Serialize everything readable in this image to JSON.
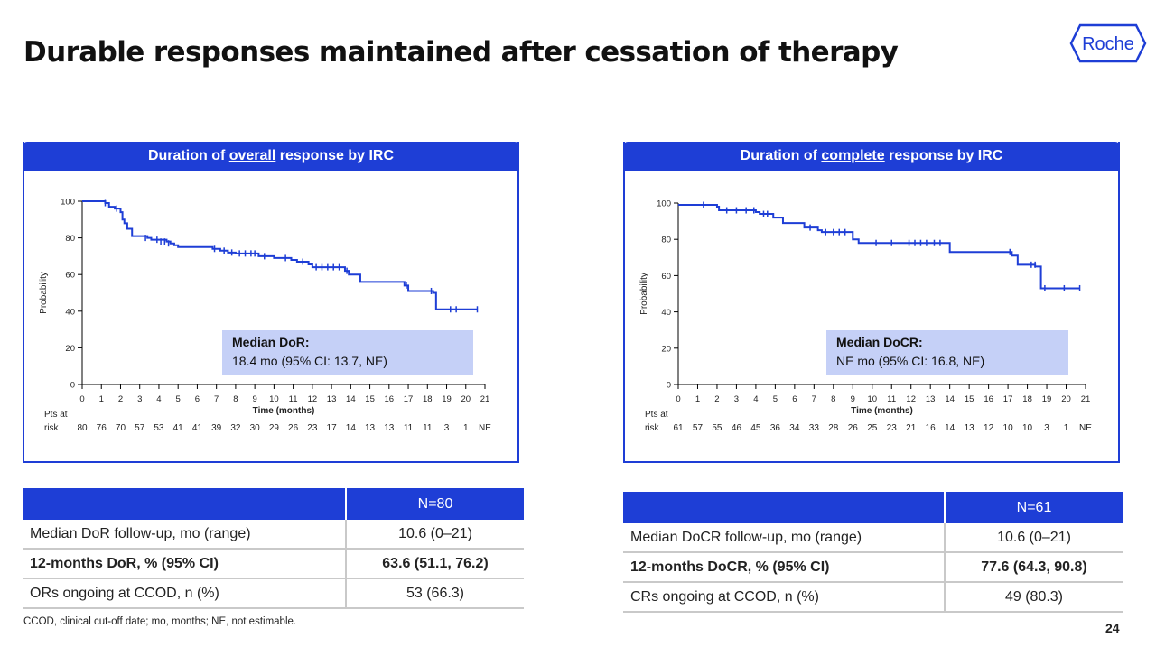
{
  "title": "Durable responses maintained after cessation of therapy",
  "logo_text": "Roche",
  "page_number": "24",
  "footnote": "CCOD, clinical cut-off date; mo, months; NE, not estimable.",
  "colors": {
    "accent": "#1e3ed6",
    "median_box": "#c5d0f7",
    "curve": "#1e3ed6"
  },
  "chart_data": [
    {
      "type": "line",
      "title_parts": [
        "Duration of ",
        "overall",
        " response by IRC"
      ],
      "xlabel": "Time (months)",
      "ylabel": "Probability",
      "xlim": [
        0,
        21
      ],
      "ylim": [
        0,
        100
      ],
      "x_ticks": [
        "0",
        "1",
        "2",
        "3",
        "4",
        "5",
        "6",
        "7",
        "8",
        "9",
        "10",
        "11",
        "12",
        "13",
        "14",
        "15",
        "16",
        "17",
        "18",
        "19",
        "20",
        "21"
      ],
      "y_ticks": [
        "0",
        "20",
        "40",
        "60",
        "80",
        "100"
      ],
      "risk_label_1": "Pts at",
      "risk_label_2": "risk",
      "at_risk": [
        "80",
        "76",
        "70",
        "57",
        "53",
        "41",
        "41",
        "39",
        "32",
        "30",
        "29",
        "26",
        "23",
        "17",
        "14",
        "13",
        "13",
        "11",
        "11",
        "3",
        "1",
        "NE"
      ],
      "median_title": "Median DoR:",
      "median_value": "18.4 mo (95% CI: 13.7, NE)",
      "series": [
        {
          "steps": [
            [
              0,
              100
            ],
            [
              1.2,
              99
            ],
            [
              1.4,
              97
            ],
            [
              1.7,
              96
            ],
            [
              2.0,
              94
            ],
            [
              2.1,
              90
            ],
            [
              2.2,
              88
            ],
            [
              2.35,
              85
            ],
            [
              2.6,
              81
            ],
            [
              3.4,
              80
            ],
            [
              3.6,
              79
            ],
            [
              4.4,
              78
            ],
            [
              4.6,
              77
            ],
            [
              4.8,
              76
            ],
            [
              5.0,
              75
            ],
            [
              6.8,
              74
            ],
            [
              7.2,
              73
            ],
            [
              7.6,
              72
            ],
            [
              8.0,
              71.5
            ],
            [
              9.2,
              70
            ],
            [
              10.0,
              69
            ],
            [
              10.9,
              68
            ],
            [
              11.2,
              67
            ],
            [
              11.8,
              65.5
            ],
            [
              12.0,
              64
            ],
            [
              13.7,
              62
            ],
            [
              13.9,
              60
            ],
            [
              14.5,
              56
            ],
            [
              16.8,
              54
            ],
            [
              17.0,
              51
            ],
            [
              18.3,
              50
            ],
            [
              18.45,
              41
            ],
            [
              20.6,
              41
            ]
          ],
          "censors": [
            [
              1.2,
              99
            ],
            [
              1.8,
              96
            ],
            [
              3.3,
              80
            ],
            [
              3.9,
              79
            ],
            [
              4.1,
              78
            ],
            [
              4.3,
              78
            ],
            [
              4.5,
              77
            ],
            [
              6.9,
              74
            ],
            [
              7.4,
              73
            ],
            [
              7.8,
              72
            ],
            [
              8.2,
              71.5
            ],
            [
              8.5,
              71.5
            ],
            [
              8.8,
              71.5
            ],
            [
              9.0,
              71.5
            ],
            [
              9.5,
              70
            ],
            [
              10.6,
              69
            ],
            [
              11.5,
              67
            ],
            [
              12.2,
              64
            ],
            [
              12.5,
              64
            ],
            [
              12.8,
              64
            ],
            [
              13.1,
              64
            ],
            [
              13.4,
              64
            ],
            [
              13.8,
              62
            ],
            [
              16.9,
              54
            ],
            [
              18.2,
              51
            ],
            [
              19.2,
              41
            ],
            [
              19.5,
              41
            ],
            [
              20.6,
              41
            ]
          ]
        }
      ]
    },
    {
      "type": "line",
      "title_parts": [
        "Duration of ",
        "complete",
        " response by IRC"
      ],
      "xlabel": "Time (months)",
      "ylabel": "Probability",
      "xlim": [
        0,
        21
      ],
      "ylim": [
        0,
        100
      ],
      "x_ticks": [
        "0",
        "1",
        "2",
        "3",
        "4",
        "5",
        "6",
        "7",
        "8",
        "9",
        "10",
        "11",
        "12",
        "13",
        "14",
        "15",
        "16",
        "17",
        "18",
        "19",
        "20",
        "21"
      ],
      "y_ticks": [
        "0",
        "20",
        "40",
        "60",
        "80",
        "100"
      ],
      "risk_label_1": "Pts at",
      "risk_label_2": "risk",
      "at_risk": [
        "61",
        "57",
        "55",
        "46",
        "45",
        "36",
        "34",
        "33",
        "28",
        "26",
        "25",
        "23",
        "21",
        "16",
        "14",
        "13",
        "12",
        "10",
        "10",
        "3",
        "1",
        "NE"
      ],
      "median_title": "Median DoCR:",
      "median_value": "NE mo (95% CI: 16.8, NE)",
      "series": [
        {
          "steps": [
            [
              0,
              99
            ],
            [
              2.0,
              98
            ],
            [
              2.1,
              96
            ],
            [
              4.0,
              95
            ],
            [
              4.2,
              94
            ],
            [
              4.9,
              92
            ],
            [
              5.4,
              89
            ],
            [
              6.5,
              86.5
            ],
            [
              7.2,
              85
            ],
            [
              7.4,
              84
            ],
            [
              9.0,
              80
            ],
            [
              9.3,
              78
            ],
            [
              14.0,
              73
            ],
            [
              17.2,
              71
            ],
            [
              17.5,
              66
            ],
            [
              18.4,
              65
            ],
            [
              18.7,
              53
            ],
            [
              20.7,
              53
            ]
          ],
          "censors": [
            [
              1.3,
              99
            ],
            [
              2.5,
              96
            ],
            [
              3.0,
              96
            ],
            [
              3.5,
              96
            ],
            [
              3.9,
              96
            ],
            [
              4.4,
              94
            ],
            [
              4.6,
              94
            ],
            [
              6.8,
              86.5
            ],
            [
              7.6,
              84
            ],
            [
              8.0,
              84
            ],
            [
              8.3,
              84
            ],
            [
              8.6,
              84
            ],
            [
              10.2,
              78
            ],
            [
              11.0,
              78
            ],
            [
              11.9,
              78
            ],
            [
              12.2,
              78
            ],
            [
              12.5,
              78
            ],
            [
              12.8,
              78
            ],
            [
              13.2,
              78
            ],
            [
              13.5,
              78
            ],
            [
              17.1,
              73
            ],
            [
              18.2,
              66
            ],
            [
              18.4,
              66
            ],
            [
              18.9,
              53
            ],
            [
              19.9,
              53
            ],
            [
              20.7,
              53
            ]
          ]
        }
      ]
    }
  ],
  "tables": [
    {
      "header": "N=80",
      "rows": [
        {
          "label": "Median DoR follow-up, mo (range)",
          "value": "10.6 (0–21)",
          "bold": false
        },
        {
          "label": "12-months DoR, % (95% CI)",
          "value": "63.6 (51.1, 76.2)",
          "bold": true
        },
        {
          "label": "ORs ongoing at CCOD, n (%)",
          "value": "53 (66.3)",
          "bold": false
        }
      ]
    },
    {
      "header": "N=61",
      "rows": [
        {
          "label": "Median DoCR follow-up, mo (range)",
          "value": "10.6 (0–21)",
          "bold": false
        },
        {
          "label": "12-months DoCR, % (95% CI)",
          "value": "77.6 (64.3, 90.8)",
          "bold": true
        },
        {
          "label": "CRs ongoing at CCOD, n (%)",
          "value": "49 (80.3)",
          "bold": false
        }
      ]
    }
  ]
}
